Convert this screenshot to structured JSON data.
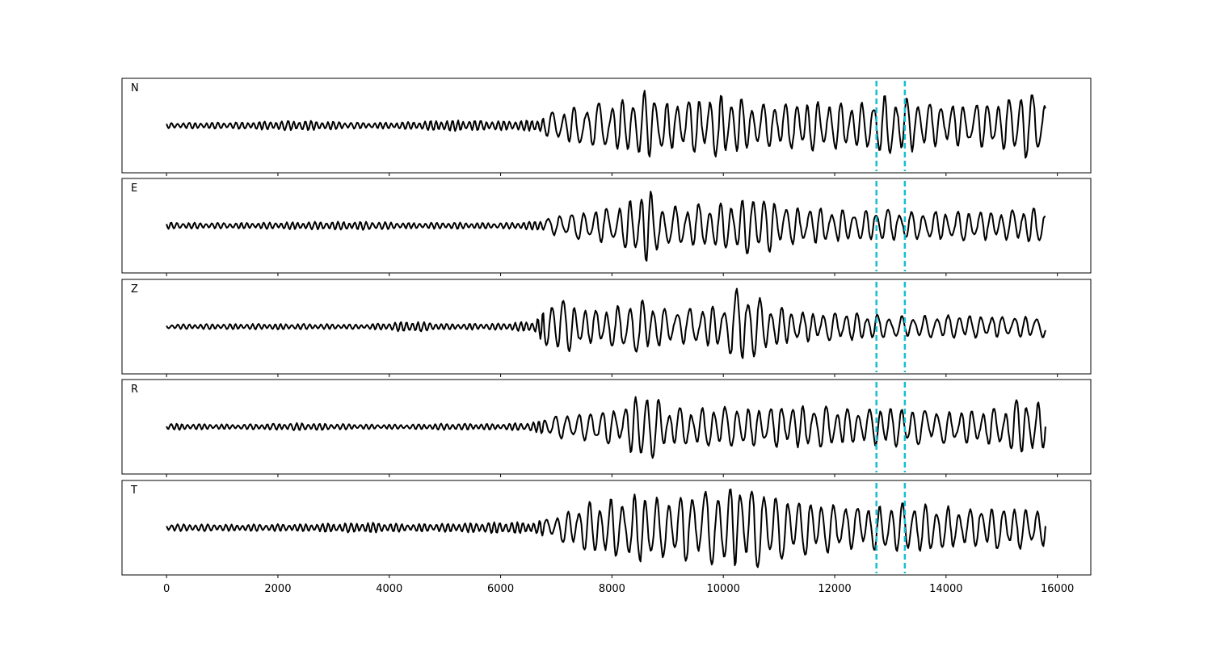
{
  "chart_data": {
    "type": "line",
    "xlim": [
      -800,
      16600
    ],
    "x_ticks": [
      0,
      2000,
      4000,
      6000,
      8000,
      10000,
      12000,
      14000,
      16000
    ],
    "x_tick_labels": [
      "0",
      "2000",
      "4000",
      "6000",
      "8000",
      "10000",
      "12000",
      "14000",
      "16000"
    ],
    "sample_count": 15800,
    "grid": false,
    "line_color": "#000000",
    "marker_color": "#17becf",
    "markers": [
      {
        "x": 12750,
        "style": "dashed"
      },
      {
        "x": 13260,
        "style": "dashed"
      }
    ],
    "panels": [
      {
        "label": "N",
        "ylim": [
          -1.0,
          1.0
        ],
        "envelope": [
          [
            0,
            0.06
          ],
          [
            1200,
            0.07
          ],
          [
            2400,
            0.11
          ],
          [
            3600,
            0.06
          ],
          [
            4400,
            0.08
          ],
          [
            5000,
            0.12
          ],
          [
            6000,
            0.1
          ],
          [
            6600,
            0.12
          ],
          [
            7000,
            0.32
          ],
          [
            7600,
            0.45
          ],
          [
            8200,
            0.55
          ],
          [
            8600,
            0.75
          ],
          [
            9000,
            0.5
          ],
          [
            9400,
            0.55
          ],
          [
            10000,
            0.7
          ],
          [
            10600,
            0.45
          ],
          [
            11200,
            0.5
          ],
          [
            11800,
            0.55
          ],
          [
            12400,
            0.45
          ],
          [
            12900,
            0.65
          ],
          [
            13300,
            0.6
          ],
          [
            13800,
            0.45
          ],
          [
            14400,
            0.45
          ],
          [
            15000,
            0.5
          ],
          [
            15400,
            0.75
          ],
          [
            15800,
            0.55
          ]
        ],
        "seed": 11
      },
      {
        "label": "E",
        "ylim": [
          -1.0,
          1.0
        ],
        "envelope": [
          [
            0,
            0.07
          ],
          [
            1200,
            0.06
          ],
          [
            2400,
            0.08
          ],
          [
            3600,
            0.09
          ],
          [
            4400,
            0.06
          ],
          [
            5000,
            0.07
          ],
          [
            6000,
            0.06
          ],
          [
            6600,
            0.09
          ],
          [
            7000,
            0.22
          ],
          [
            7600,
            0.32
          ],
          [
            8200,
            0.45
          ],
          [
            8600,
            0.82
          ],
          [
            9000,
            0.42
          ],
          [
            9400,
            0.45
          ],
          [
            10000,
            0.48
          ],
          [
            10600,
            0.65
          ],
          [
            11200,
            0.4
          ],
          [
            11800,
            0.38
          ],
          [
            12400,
            0.3
          ],
          [
            12900,
            0.35
          ],
          [
            13300,
            0.3
          ],
          [
            13800,
            0.3
          ],
          [
            14400,
            0.32
          ],
          [
            15000,
            0.3
          ],
          [
            15400,
            0.38
          ],
          [
            15800,
            0.35
          ]
        ],
        "seed": 23
      },
      {
        "label": "Z",
        "ylim": [
          -1.0,
          1.0
        ],
        "envelope": [
          [
            0,
            0.05
          ],
          [
            1200,
            0.06
          ],
          [
            2400,
            0.06
          ],
          [
            3600,
            0.05
          ],
          [
            4400,
            0.12
          ],
          [
            5000,
            0.06
          ],
          [
            6000,
            0.07
          ],
          [
            6600,
            0.12
          ],
          [
            7000,
            0.65
          ],
          [
            7600,
            0.35
          ],
          [
            8200,
            0.48
          ],
          [
            8600,
            0.6
          ],
          [
            9000,
            0.35
          ],
          [
            9400,
            0.4
          ],
          [
            10000,
            0.45
          ],
          [
            10300,
            0.9
          ],
          [
            10800,
            0.5
          ],
          [
            11200,
            0.35
          ],
          [
            11800,
            0.3
          ],
          [
            12400,
            0.3
          ],
          [
            12900,
            0.25
          ],
          [
            13300,
            0.22
          ],
          [
            13800,
            0.25
          ],
          [
            14400,
            0.25
          ],
          [
            15000,
            0.22
          ],
          [
            15400,
            0.22
          ],
          [
            15800,
            0.25
          ]
        ],
        "seed": 37
      },
      {
        "label": "R",
        "ylim": [
          -1.0,
          1.0
        ],
        "envelope": [
          [
            0,
            0.07
          ],
          [
            1200,
            0.05
          ],
          [
            2400,
            0.08
          ],
          [
            3600,
            0.05
          ],
          [
            4400,
            0.05
          ],
          [
            5000,
            0.07
          ],
          [
            6000,
            0.06
          ],
          [
            6600,
            0.1
          ],
          [
            7000,
            0.25
          ],
          [
            7600,
            0.3
          ],
          [
            8200,
            0.4
          ],
          [
            8600,
            0.85
          ],
          [
            9000,
            0.4
          ],
          [
            9400,
            0.4
          ],
          [
            10000,
            0.45
          ],
          [
            10600,
            0.4
          ],
          [
            11200,
            0.45
          ],
          [
            11800,
            0.45
          ],
          [
            12400,
            0.35
          ],
          [
            12900,
            0.45
          ],
          [
            13300,
            0.4
          ],
          [
            13800,
            0.35
          ],
          [
            14400,
            0.35
          ],
          [
            15000,
            0.4
          ],
          [
            15400,
            0.65
          ],
          [
            15800,
            0.45
          ]
        ],
        "seed": 41
      },
      {
        "label": "T",
        "ylim": [
          -1.0,
          1.0
        ],
        "envelope": [
          [
            0,
            0.08
          ],
          [
            1200,
            0.07
          ],
          [
            2400,
            0.08
          ],
          [
            3600,
            0.11
          ],
          [
            4400,
            0.08
          ],
          [
            5000,
            0.09
          ],
          [
            6000,
            0.12
          ],
          [
            6600,
            0.12
          ],
          [
            7000,
            0.25
          ],
          [
            7600,
            0.55
          ],
          [
            8200,
            0.65
          ],
          [
            8600,
            0.8
          ],
          [
            9000,
            0.6
          ],
          [
            9400,
            0.75
          ],
          [
            10000,
            0.85
          ],
          [
            10600,
            0.85
          ],
          [
            11200,
            0.6
          ],
          [
            11800,
            0.55
          ],
          [
            12400,
            0.45
          ],
          [
            12900,
            0.5
          ],
          [
            13300,
            0.55
          ],
          [
            13800,
            0.5
          ],
          [
            14400,
            0.4
          ],
          [
            15000,
            0.45
          ],
          [
            15400,
            0.45
          ],
          [
            15800,
            0.4
          ]
        ],
        "seed": 53
      }
    ]
  }
}
